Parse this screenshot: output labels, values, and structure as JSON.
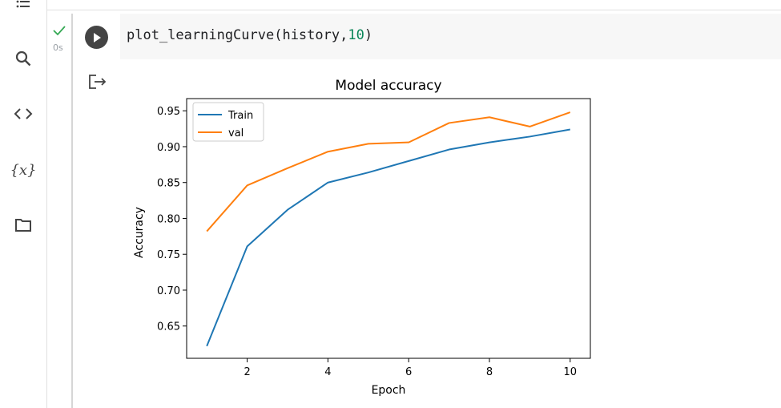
{
  "sidebar": {
    "items": [
      {
        "name": "table-of-contents-icon"
      },
      {
        "name": "search-icon"
      },
      {
        "name": "code-snippets-icon"
      },
      {
        "name": "variables-icon",
        "glyph": "{x}"
      },
      {
        "name": "files-icon"
      }
    ]
  },
  "cell": {
    "code_fn": "plot_learningCurve(history,",
    "code_num": "10",
    "code_close": ")",
    "exec_time": "0s",
    "status_color": "#34a853"
  },
  "chart_data": {
    "type": "line",
    "title": "Model accuracy",
    "xlabel": "Epoch",
    "ylabel": "Accuracy",
    "x": [
      1,
      2,
      3,
      4,
      5,
      6,
      7,
      8,
      9,
      10
    ],
    "xlim": [
      0.5,
      10.5
    ],
    "ylim": [
      0.605,
      0.967
    ],
    "xticks": [
      2,
      4,
      6,
      8,
      10
    ],
    "yticks": [
      0.65,
      0.7,
      0.75,
      0.8,
      0.85,
      0.9,
      0.95
    ],
    "ytick_labels": [
      "0.65",
      "0.70",
      "0.75",
      "0.80",
      "0.85",
      "0.90",
      "0.95"
    ],
    "grid": false,
    "legend_position": "top-left",
    "series": [
      {
        "name": "Train",
        "color": "#1f77b4",
        "values": [
          0.622,
          0.761,
          0.812,
          0.85,
          0.864,
          0.88,
          0.896,
          0.906,
          0.914,
          0.924
        ]
      },
      {
        "name": "val",
        "color": "#ff7f0e",
        "values": [
          0.782,
          0.846,
          0.87,
          0.893,
          0.904,
          0.906,
          0.933,
          0.941,
          0.928,
          0.948
        ]
      }
    ]
  }
}
